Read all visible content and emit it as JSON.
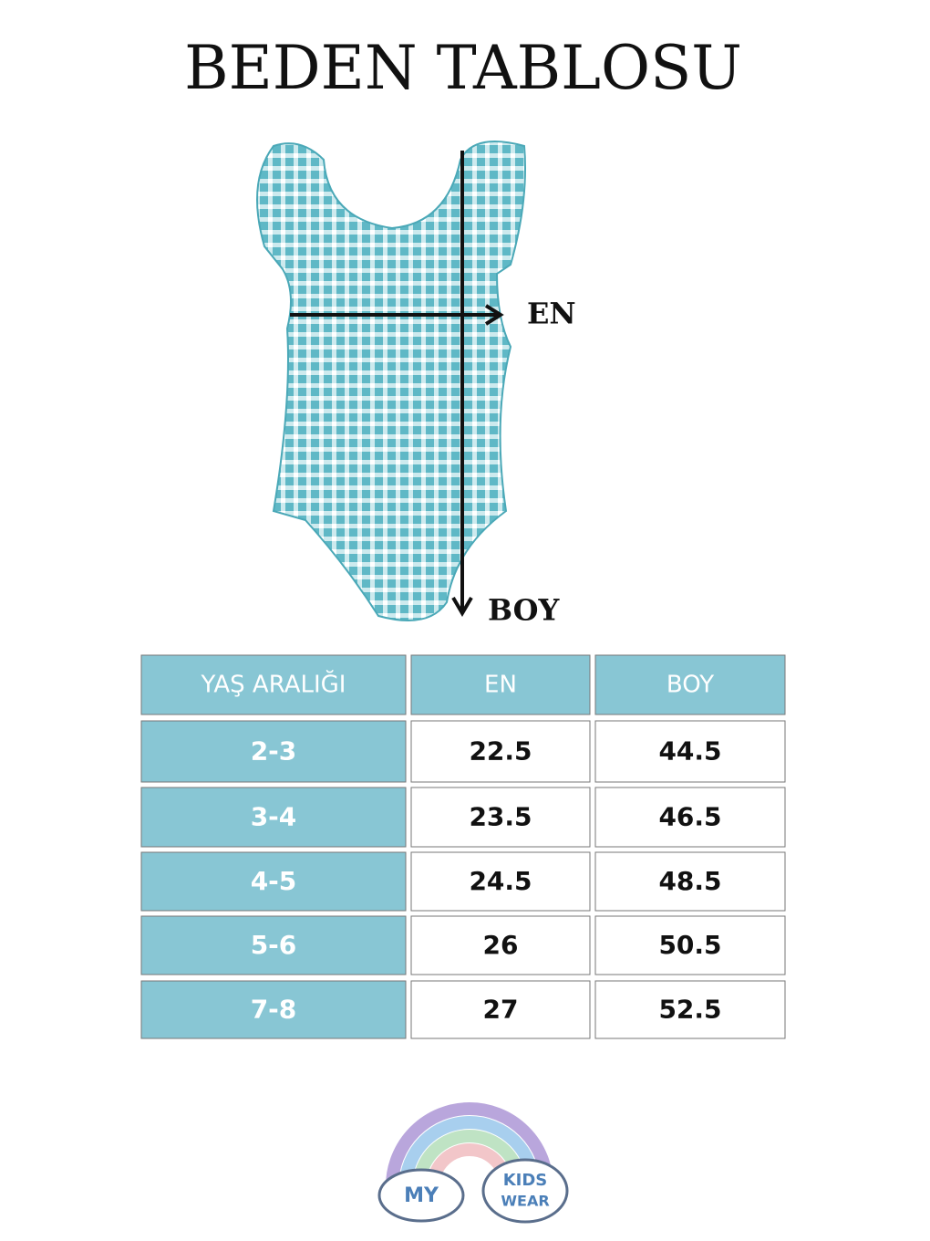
{
  "header": {
    "title": "BEDEN TABLOSU"
  },
  "diagram": {
    "width_label": "EN",
    "length_label": "BOY"
  },
  "table": {
    "columns": [
      "YAŞ ARALIĞI",
      "EN",
      "BOY"
    ],
    "rows": [
      [
        "2-3",
        22.5,
        44.5
      ],
      [
        "3-4",
        23.5,
        46.5
      ],
      [
        "4-5",
        24.5,
        48.5
      ],
      [
        "5-6",
        26,
        50.5
      ],
      [
        "7-8",
        27,
        52.5
      ]
    ]
  },
  "logo": {
    "left": "MY",
    "right_top": "KIDS",
    "right_bottom": "WEAR"
  }
}
